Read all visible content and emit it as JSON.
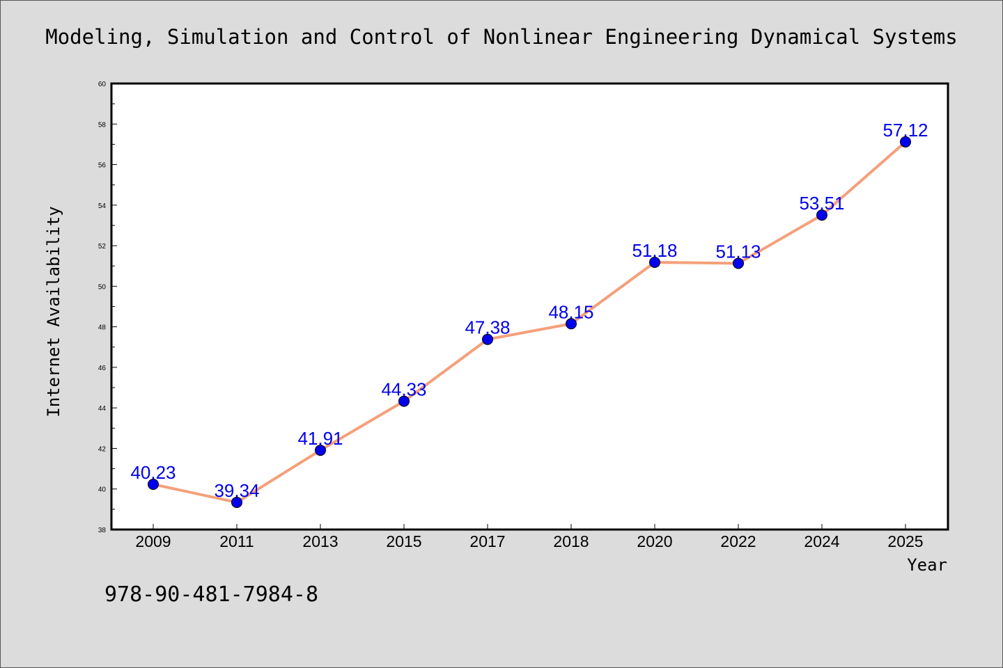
{
  "chart_data": {
    "type": "line",
    "title": "Modeling, Simulation and Control of Nonlinear Engineering Dynamical Systems",
    "xlabel": "Year",
    "ylabel": "Internet Availability",
    "categories": [
      "2009",
      "2011",
      "2013",
      "2015",
      "2017",
      "2018",
      "2020",
      "2022",
      "2024",
      "2025"
    ],
    "series": [
      {
        "values": [
          40.23,
          39.34,
          41.91,
          44.33,
          47.38,
          48.15,
          51.18,
          51.13,
          53.51,
          57.12
        ]
      }
    ],
    "data_labels": [
      "40.23",
      "39.34",
      "41.91",
      "44.33",
      "47.38",
      "48.15",
      "51.18",
      "51.13",
      "53.51",
      "57.12"
    ],
    "ylim": [
      38,
      60
    ],
    "yticks": [
      38,
      40,
      42,
      44,
      46,
      48,
      50,
      52,
      54,
      56,
      58,
      60
    ],
    "grid": false,
    "line_color": "#f4a07a",
    "marker_color": "#0000ee",
    "label_color": "#0000ee"
  },
  "footer": {
    "isbn": "978-90-481-7984-8"
  }
}
